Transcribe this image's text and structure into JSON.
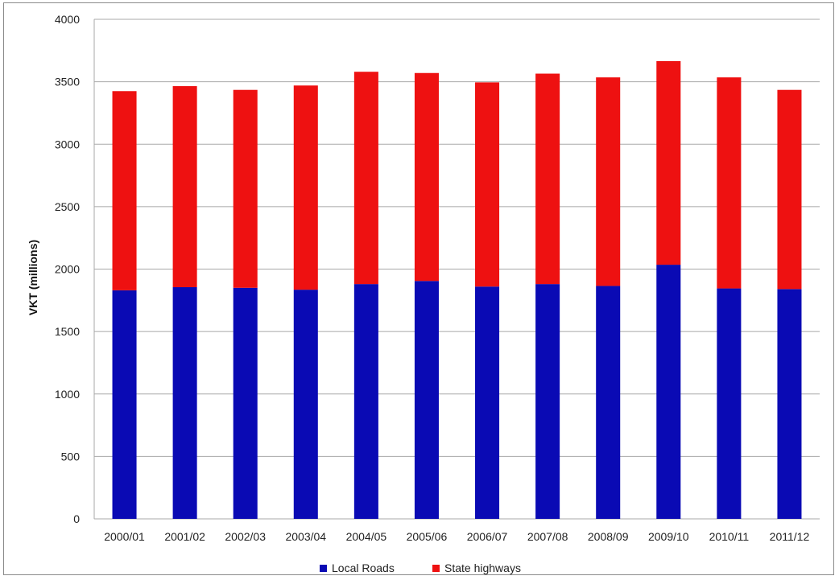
{
  "chart_data": {
    "type": "bar",
    "stacked": true,
    "title": "",
    "xlabel": "",
    "ylabel": "VKT (millions)",
    "ylim": [
      0,
      4000
    ],
    "yticks": [
      0,
      500,
      1000,
      1500,
      2000,
      2500,
      3000,
      3500,
      4000
    ],
    "grid": "horizontal",
    "legend_position": "bottom",
    "categories": [
      "2000/01",
      "2001/02",
      "2002/03",
      "2003/04",
      "2004/05",
      "2005/06",
      "2006/07",
      "2007/08",
      "2008/09",
      "2009/10",
      "2010/11",
      "2011/12"
    ],
    "series": [
      {
        "name": "Local Roads",
        "color": "#0a0ab4",
        "values": [
          1830,
          1855,
          1850,
          1835,
          1880,
          1905,
          1860,
          1880,
          1865,
          2035,
          1845,
          1840
        ]
      },
      {
        "name": "State highways",
        "color": "#ee1111",
        "values": [
          1595,
          1610,
          1585,
          1635,
          1700,
          1665,
          1635,
          1685,
          1670,
          1630,
          1690,
          1595
        ]
      }
    ]
  }
}
